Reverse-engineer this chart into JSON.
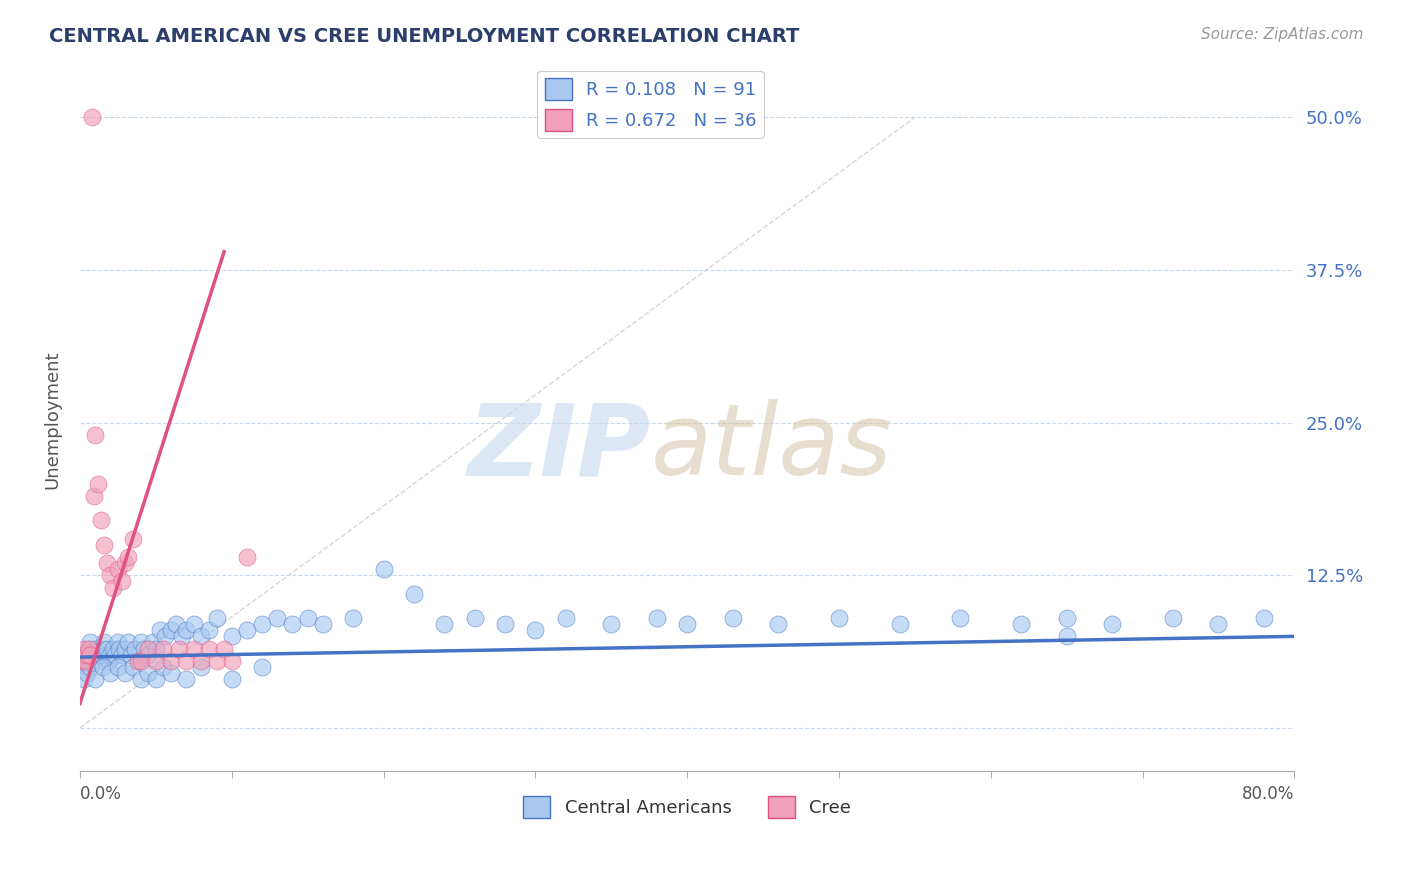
{
  "title": "CENTRAL AMERICAN VS CREE UNEMPLOYMENT CORRELATION CHART",
  "source": "Source: ZipAtlas.com",
  "ylabel": "Unemployment",
  "y_ticks": [
    0.0,
    0.125,
    0.25,
    0.375,
    0.5
  ],
  "y_tick_labels": [
    "",
    "12.5%",
    "25.0%",
    "37.5%",
    "50.0%"
  ],
  "x_range": [
    0.0,
    0.8
  ],
  "y_range": [
    -0.035,
    0.54
  ],
  "legend_r1": "R = 0.108",
  "legend_n1": "N = 91",
  "legend_r2": "R = 0.672",
  "legend_n2": "N = 36",
  "color_blue": "#a8c8f0",
  "color_pink": "#f0a0b8",
  "color_blue_line": "#4472c4",
  "color_pink_line": "#e05080",
  "color_grid": "#c8d8e8",
  "blue_x": [
    0.002,
    0.003,
    0.004,
    0.005,
    0.006,
    0.007,
    0.008,
    0.009,
    0.01,
    0.012,
    0.013,
    0.014,
    0.015,
    0.016,
    0.017,
    0.018,
    0.019,
    0.02,
    0.022,
    0.023,
    0.025,
    0.026,
    0.028,
    0.03,
    0.032,
    0.034,
    0.036,
    0.038,
    0.04,
    0.042,
    0.045,
    0.048,
    0.05,
    0.053,
    0.056,
    0.06,
    0.063,
    0.067,
    0.07,
    0.075,
    0.08,
    0.085,
    0.09,
    0.1,
    0.11,
    0.12,
    0.13,
    0.14,
    0.15,
    0.16,
    0.18,
    0.2,
    0.22,
    0.24,
    0.26,
    0.28,
    0.3,
    0.32,
    0.35,
    0.38,
    0.4,
    0.43,
    0.46,
    0.5,
    0.54,
    0.58,
    0.62,
    0.65,
    0.68,
    0.72,
    0.75,
    0.78,
    0.003,
    0.005,
    0.007,
    0.01,
    0.015,
    0.02,
    0.025,
    0.03,
    0.035,
    0.04,
    0.045,
    0.05,
    0.055,
    0.06,
    0.07,
    0.08,
    0.1,
    0.12,
    0.65
  ],
  "blue_y": [
    0.06,
    0.055,
    0.05,
    0.06,
    0.065,
    0.07,
    0.06,
    0.055,
    0.065,
    0.06,
    0.055,
    0.06,
    0.065,
    0.07,
    0.06,
    0.065,
    0.055,
    0.06,
    0.065,
    0.06,
    0.07,
    0.065,
    0.06,
    0.065,
    0.07,
    0.06,
    0.065,
    0.055,
    0.07,
    0.065,
    0.06,
    0.07,
    0.065,
    0.08,
    0.075,
    0.08,
    0.085,
    0.075,
    0.08,
    0.085,
    0.075,
    0.08,
    0.09,
    0.075,
    0.08,
    0.085,
    0.09,
    0.085,
    0.09,
    0.085,
    0.09,
    0.13,
    0.11,
    0.085,
    0.09,
    0.085,
    0.08,
    0.09,
    0.085,
    0.09,
    0.085,
    0.09,
    0.085,
    0.09,
    0.085,
    0.09,
    0.085,
    0.09,
    0.085,
    0.09,
    0.085,
    0.09,
    0.04,
    0.045,
    0.05,
    0.04,
    0.05,
    0.045,
    0.05,
    0.045,
    0.05,
    0.04,
    0.045,
    0.04,
    0.05,
    0.045,
    0.04,
    0.05,
    0.04,
    0.05,
    0.075
  ],
  "pink_x": [
    0.001,
    0.002,
    0.003,
    0.004,
    0.005,
    0.006,
    0.007,
    0.008,
    0.009,
    0.01,
    0.012,
    0.014,
    0.016,
    0.018,
    0.02,
    0.022,
    0.025,
    0.028,
    0.03,
    0.032,
    0.035,
    0.038,
    0.04,
    0.045,
    0.05,
    0.055,
    0.06,
    0.065,
    0.07,
    0.075,
    0.08,
    0.085,
    0.09,
    0.095,
    0.1,
    0.11
  ],
  "pink_y": [
    0.055,
    0.06,
    0.065,
    0.055,
    0.06,
    0.065,
    0.06,
    0.5,
    0.19,
    0.24,
    0.2,
    0.17,
    0.15,
    0.135,
    0.125,
    0.115,
    0.13,
    0.12,
    0.135,
    0.14,
    0.155,
    0.055,
    0.055,
    0.065,
    0.055,
    0.065,
    0.055,
    0.065,
    0.055,
    0.065,
    0.055,
    0.065,
    0.055,
    0.065,
    0.055,
    0.14
  ],
  "pink_trend_x": [
    0.0,
    0.095
  ],
  "pink_trend_y": [
    0.02,
    0.39
  ],
  "blue_trend_x": [
    0.0,
    0.8
  ],
  "blue_trend_y": [
    0.058,
    0.075
  ]
}
